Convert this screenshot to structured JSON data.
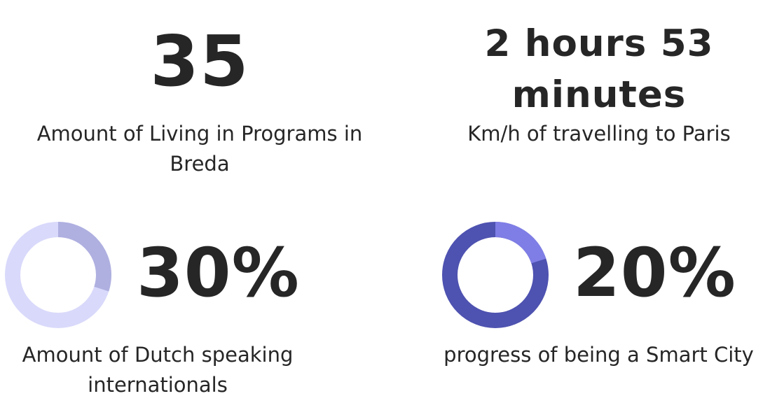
{
  "stats": [
    {
      "value": "35",
      "caption": "Amount of Living in Programs in Breda"
    },
    {
      "value": "2 hours 53 minutes",
      "caption": "Km/h of travelling to Paris"
    },
    {
      "value": "30%",
      "caption": "Amount of Dutch speaking internationals",
      "progress": 0.3,
      "colors": {
        "track": "#d9d9fb",
        "fill": "#afb0e0"
      }
    },
    {
      "value": "20%",
      "caption": "progress of being a Smart City",
      "progress": 0.2,
      "colors": {
        "track": "#4e52b0",
        "fill": "#7f7ee6"
      }
    }
  ]
}
